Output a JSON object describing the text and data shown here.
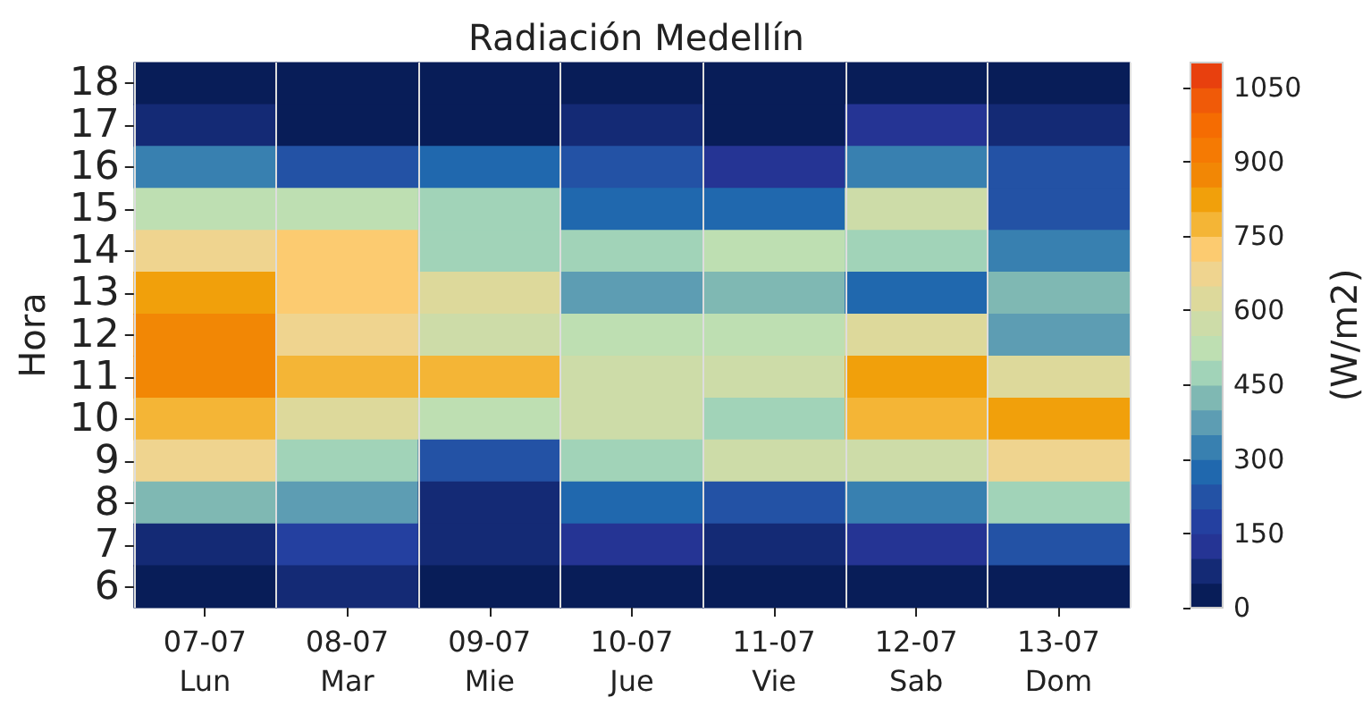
{
  "chart_data": {
    "type": "heatmap",
    "title": "Radiación Medellín",
    "ylabel": "Hora",
    "clabel": "(W/m2)",
    "categories": [
      "07-07\nLun",
      "08-07\nMar",
      "09-07\nMie",
      "10-07\nJue",
      "11-07\nVie",
      "12-07\nSab",
      "13-07\nDom"
    ],
    "y_categories": [
      "18",
      "17",
      "16",
      "15",
      "14",
      "13",
      "12",
      "11",
      "10",
      "9",
      "8",
      "7",
      "6"
    ],
    "cells": [
      [
        25,
        25,
        25,
        25,
        25,
        25,
        25
      ],
      [
        75,
        25,
        25,
        75,
        25,
        125,
        75
      ],
      [
        325,
        225,
        275,
        225,
        125,
        325,
        225
      ],
      [
        525,
        525,
        475,
        275,
        275,
        575,
        225
      ],
      [
        675,
        725,
        475,
        475,
        525,
        475,
        325
      ],
      [
        825,
        725,
        625,
        375,
        425,
        275,
        425
      ],
      [
        875,
        675,
        575,
        525,
        525,
        625,
        375
      ],
      [
        875,
        775,
        775,
        575,
        575,
        825,
        625
      ],
      [
        775,
        625,
        525,
        575,
        475,
        775,
        825
      ],
      [
        675,
        475,
        225,
        475,
        575,
        575,
        675
      ],
      [
        425,
        375,
        75,
        275,
        225,
        325,
        475
      ],
      [
        75,
        175,
        75,
        125,
        75,
        125,
        225
      ],
      [
        25,
        75,
        25,
        25,
        25,
        25,
        25
      ]
    ],
    "clim": [
      0,
      1100
    ],
    "cticks": [
      0,
      150,
      300,
      450,
      600,
      750,
      900,
      1050
    ],
    "grid": "x"
  }
}
